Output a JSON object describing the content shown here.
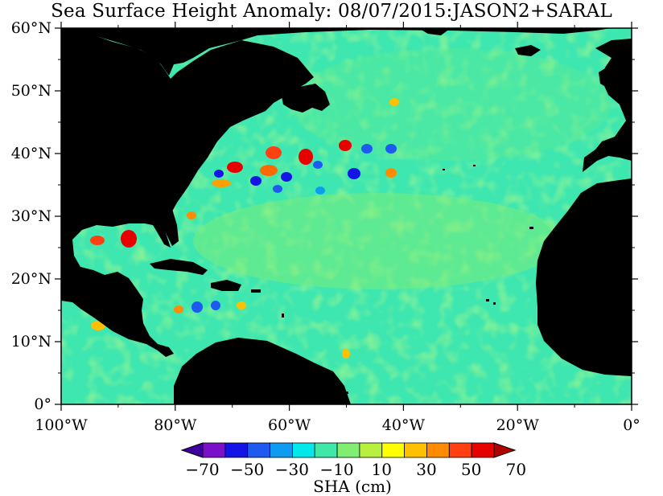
{
  "title": "Sea Surface Height Anomaly: 08/07/2015:JASON2+SARAL",
  "map": {
    "lon_ticks": [
      "100°W",
      "80°W",
      "60°W",
      "40°W",
      "20°W",
      "0°"
    ],
    "lat_ticks": [
      "60°N",
      "50°N",
      "40°N",
      "30°N",
      "20°N",
      "10°N",
      "0°"
    ],
    "lon_range": [
      -100,
      0
    ],
    "lat_range": [
      0,
      60
    ],
    "land_color": "#000000"
  },
  "colorbar": {
    "unit_label": "SHA (cm)",
    "tick_labels": [
      "-70",
      "-50",
      "-30",
      "-10",
      "10",
      "30",
      "50",
      "70"
    ],
    "colors": [
      "#4000a0",
      "#7a10c8",
      "#1414e6",
      "#1e5af0",
      "#0f9bf0",
      "#00e8e8",
      "#40e8a8",
      "#80ee70",
      "#b8f040",
      "#ffff00",
      "#ffc000",
      "#ff8c00",
      "#ff4010",
      "#e60000",
      "#b00000"
    ]
  }
}
